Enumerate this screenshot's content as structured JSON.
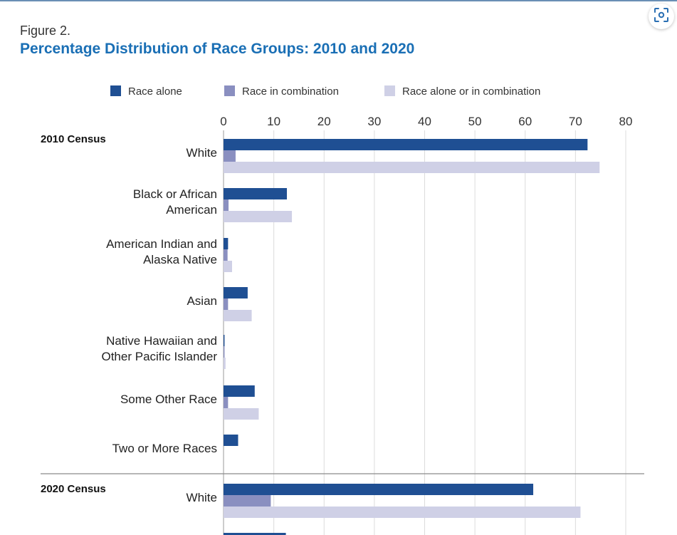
{
  "figure": {
    "label": "Figure 2.",
    "title": "Percentage Distribution of Race Groups: 2010 and 2020"
  },
  "toolbar": {
    "lens_icon": "visual-search-icon"
  },
  "colors": {
    "race_alone": "#1f4f93",
    "race_in_combination": "#8a8fc0",
    "race_alone_or_in_combination": "#cfd0e6",
    "title": "#1a6fb5",
    "gridline": "#dcdcdc"
  },
  "chart_data": {
    "type": "bar",
    "orientation": "horizontal",
    "xlim": [
      0,
      80
    ],
    "ticks": [
      0,
      10,
      20,
      30,
      40,
      50,
      60,
      70,
      80
    ],
    "grid": true,
    "legend_position": "top",
    "series": [
      {
        "name": "Race alone"
      },
      {
        "name": "Race in combination"
      },
      {
        "name": "Race alone or in combination"
      }
    ],
    "groups": [
      {
        "name": "2010 Census",
        "categories": [
          {
            "lines": [
              "White"
            ],
            "values": [
              72.4,
              2.4,
              74.8
            ]
          },
          {
            "lines": [
              "Black or African",
              "American"
            ],
            "values": [
              12.6,
              1.0,
              13.6
            ]
          },
          {
            "lines": [
              "American Indian and",
              "Alaska Native"
            ],
            "values": [
              0.9,
              0.8,
              1.7
            ]
          },
          {
            "lines": [
              "Asian"
            ],
            "values": [
              4.8,
              0.9,
              5.6
            ]
          },
          {
            "lines": [
              "Native Hawaiian and",
              "Other Pacific Islander"
            ],
            "values": [
              0.2,
              0.2,
              0.4
            ]
          },
          {
            "lines": [
              "Some Other Race"
            ],
            "values": [
              6.2,
              0.9,
              7.0
            ]
          },
          {
            "lines": [
              "Two or More Races"
            ],
            "values": [
              2.9,
              0,
              0
            ]
          }
        ]
      },
      {
        "name": "2020 Census",
        "categories": [
          {
            "lines": [
              "White"
            ],
            "values": [
              61.6,
              9.4,
              71.0
            ]
          },
          {
            "lines": [
              ""
            ],
            "values": [
              12.4,
              0,
              0
            ]
          }
        ]
      }
    ]
  }
}
